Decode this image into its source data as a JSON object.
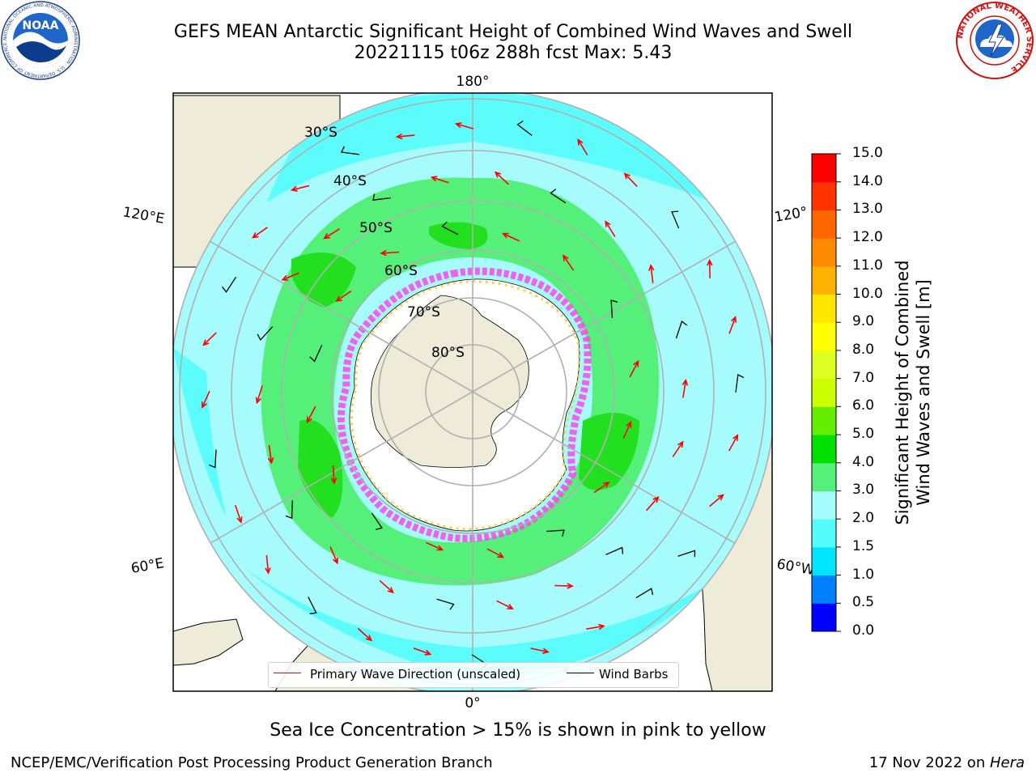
{
  "header": {
    "title_line1": "GEFS MEAN Antarctic Significant Height of Combined Wind Waves and Swell",
    "title_line2": "20221115 t06z 288h fcst   Max: 5.43"
  },
  "logos": {
    "left": {
      "name": "noaa-logo",
      "text": "NOAA",
      "ring_text": "NATIONAL OCEANIC AND ATMOSPHERIC ADMINISTRATION · U.S. DEPARTMENT OF COMMERCE"
    },
    "right": {
      "name": "nws-logo",
      "ring_text": "NATIONAL WEATHER SERVICE"
    }
  },
  "map": {
    "projection": "south-polar-stereographic",
    "meridian_labels": {
      "top": "180°",
      "bottom": "0°",
      "left_upper": "120°E",
      "left_lower": "60°E",
      "right_upper": "120°",
      "right_lower": "60°W"
    },
    "parallel_labels": [
      "30°S",
      "40°S",
      "50°S",
      "60°S",
      "70°S",
      "80°S"
    ],
    "colors": {
      "land": "#eeebd9",
      "ice_sheet": "#ffffff",
      "ocean_low": "#9efcfc",
      "ocean_mid": "#55fcfc",
      "waves_3_4": "#55f07a",
      "waves_4_5": "#22e01f",
      "sea_ice_pink": "#ff44ee",
      "sea_ice_yellow": "#ffcc33",
      "wave_arrow": "#ff0000",
      "wind_barb": "#000000",
      "grid": "#b0b0b0"
    },
    "legend": {
      "wave_direction_label": "Primary Wave Direction (unscaled)",
      "wind_barbs_label": "Wind Barbs"
    }
  },
  "colorbar": {
    "label_line1": "Significant Height of Combined",
    "label_line2": "Wind Waves and Swell [m]",
    "ticks": [
      "15.0",
      "14.0",
      "13.0",
      "12.0",
      "11.0",
      "10.0",
      "9.0",
      "8.0",
      "7.0",
      "6.0",
      "5.0",
      "4.0",
      "3.0",
      "2.0",
      "1.5",
      "1.0",
      "0.5",
      "0.0"
    ],
    "bands": [
      {
        "from": 0.0,
        "to": 0.5,
        "color": "#0000ff"
      },
      {
        "from": 0.5,
        "to": 1.0,
        "color": "#0080ff"
      },
      {
        "from": 1.0,
        "to": 1.5,
        "color": "#00e5ff"
      },
      {
        "from": 1.5,
        "to": 2.0,
        "color": "#55fcfc"
      },
      {
        "from": 2.0,
        "to": 3.0,
        "color": "#a6fcfc"
      },
      {
        "from": 3.0,
        "to": 4.0,
        "color": "#55f07a"
      },
      {
        "from": 4.0,
        "to": 5.0,
        "color": "#00e000"
      },
      {
        "from": 5.0,
        "to": 6.0,
        "color": "#66ee00"
      },
      {
        "from": 6.0,
        "to": 7.0,
        "color": "#ccff00"
      },
      {
        "from": 7.0,
        "to": 8.0,
        "color": "#ddff22"
      },
      {
        "from": 8.0,
        "to": 9.0,
        "color": "#ffff00"
      },
      {
        "from": 9.0,
        "to": 10.0,
        "color": "#ffe600"
      },
      {
        "from": 10.0,
        "to": 11.0,
        "color": "#ffb300"
      },
      {
        "from": 11.0,
        "to": 12.0,
        "color": "#ff8c00"
      },
      {
        "from": 12.0,
        "to": 13.0,
        "color": "#ff6600"
      },
      {
        "from": 13.0,
        "to": 14.0,
        "color": "#ff3300"
      },
      {
        "from": 14.0,
        "to": 15.0,
        "color": "#ff0000"
      }
    ]
  },
  "note": "Sea Ice Concentration > 15% is shown in pink to yellow",
  "footer": {
    "left": "NCEP/EMC/Verification Post Processing Product Generation Branch",
    "right_date": "17 Nov 2022 on ",
    "right_host": "Hera"
  }
}
